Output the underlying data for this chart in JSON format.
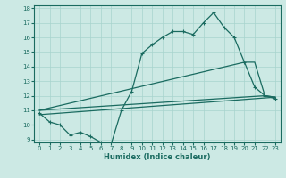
{
  "xlabel": "Humidex (Indice chaleur)",
  "xlim": [
    -0.5,
    23.5
  ],
  "ylim": [
    8.8,
    18.2
  ],
  "yticks": [
    9,
    10,
    11,
    12,
    13,
    14,
    15,
    16,
    17,
    18
  ],
  "xticks": [
    0,
    1,
    2,
    3,
    4,
    5,
    6,
    7,
    8,
    9,
    10,
    11,
    12,
    13,
    14,
    15,
    16,
    17,
    18,
    19,
    20,
    21,
    22,
    23
  ],
  "bg_color": "#cce9e4",
  "line_color": "#1a6b60",
  "grid_color": "#a8d4ce",
  "line1_x": [
    0,
    1,
    2,
    3,
    4,
    5,
    6,
    7,
    8,
    9,
    10,
    11,
    12,
    13,
    14,
    15,
    16,
    17,
    18,
    19,
    20,
    21,
    22,
    23
  ],
  "line1_y": [
    10.8,
    10.2,
    10.0,
    9.3,
    9.5,
    9.2,
    8.8,
    8.7,
    11.0,
    12.3,
    14.9,
    15.5,
    16.0,
    16.4,
    16.4,
    16.2,
    17.0,
    17.7,
    16.7,
    16.0,
    14.3,
    12.6,
    12.0,
    11.8
  ],
  "line2_x": [
    0,
    22,
    23
  ],
  "line2_y": [
    11.0,
    12.0,
    11.9
  ],
  "line3_x": [
    0,
    20,
    21,
    22,
    23
  ],
  "line3_y": [
    11.0,
    14.3,
    14.3,
    12.0,
    11.9
  ],
  "line4_x": [
    0,
    23
  ],
  "line4_y": [
    10.7,
    11.9
  ]
}
